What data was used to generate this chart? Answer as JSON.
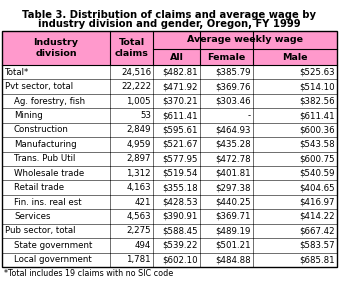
{
  "title_line1": "Table 3. Distribution of claims and average wage by",
  "title_line2": "industry division and gender, Oregon, FY 1999",
  "header_bg": "#FF99CC",
  "rows": [
    [
      "Total*",
      "24,516",
      "$482.81",
      "$385.79",
      "$525.63"
    ],
    [
      "Pvt sector, total",
      "22,222",
      "$471.92",
      "$369.76",
      "$514.10"
    ],
    [
      "  Ag. forestry, fish",
      "1,005",
      "$370.21",
      "$303.46",
      "$382.56"
    ],
    [
      "  Mining",
      "53",
      "$611.41",
      "-",
      "$611.41"
    ],
    [
      "  Construction",
      "2,849",
      "$595.61",
      "$464.93",
      "$600.36"
    ],
    [
      "  Manufacturing",
      "4,959",
      "$521.67",
      "$435.28",
      "$543.58"
    ],
    [
      "  Trans. Pub Util",
      "2,897",
      "$577.95",
      "$472.78",
      "$600.75"
    ],
    [
      "  Wholesale trade",
      "1,312",
      "$519.54",
      "$401.81",
      "$540.59"
    ],
    [
      "  Retail trade",
      "4,163",
      "$355.18",
      "$297.38",
      "$404.65"
    ],
    [
      "  Fin. ins. real est",
      "421",
      "$428.53",
      "$440.25",
      "$416.97"
    ],
    [
      "  Services",
      "4,563",
      "$390.91",
      "$369.71",
      "$414.22"
    ],
    [
      "Pub sector, total",
      "2,275",
      "$588.45",
      "$489.19",
      "$667.42"
    ],
    [
      "  State government",
      "494",
      "$539.22",
      "$501.21",
      "$583.57"
    ],
    [
      "  Local government",
      "1,781",
      "$602.10",
      "$484.88",
      "$685.81"
    ]
  ],
  "footnote": "*Total includes 19 claims with no SIC code",
  "title_fontsize": 7.2,
  "header_fontsize": 6.8,
  "cell_fontsize": 6.2,
  "footnote_fontsize": 5.8
}
